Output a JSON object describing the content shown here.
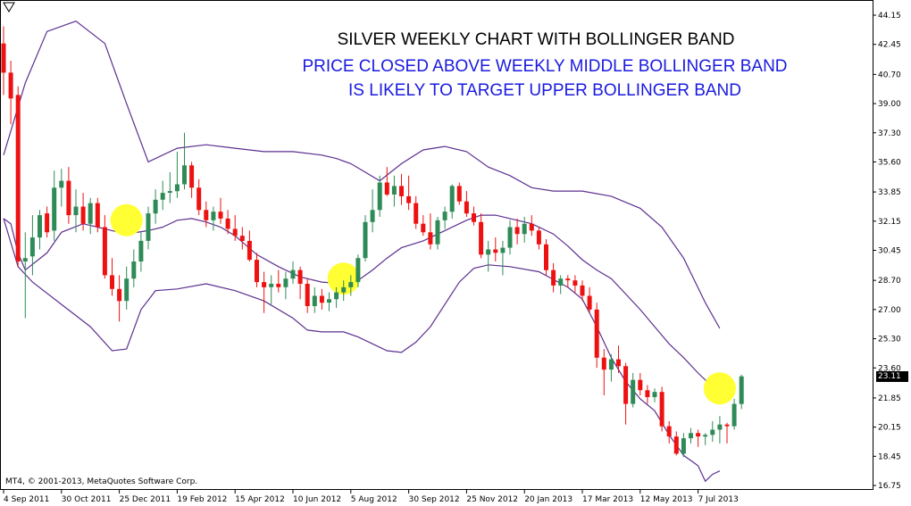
{
  "chart_data": {
    "type": "candlestick",
    "title": "SILVER WEEKLY CHART WITH BOLLINGER BAND",
    "subtitle_lines": [
      "PRICE CLOSED ABOVE WEEKLY MIDDLE BOLLINGER BAND",
      "IS LIKELY TO TARGET UPPER BOLLINGER BAND"
    ],
    "copyright": "MT4, © 2001-2013, MetaQuotes Software Corp.",
    "current_price": "23.11",
    "ylim": [
      16.75,
      44.15
    ],
    "y_ticks": [
      "44.15",
      "42.45",
      "40.70",
      "39.00",
      "37.30",
      "35.60",
      "33.85",
      "32.15",
      "30.45",
      "28.70",
      "27.00",
      "25.30",
      "23.60",
      "21.85",
      "20.15",
      "18.45",
      "16.75"
    ],
    "x_labels": [
      {
        "label": "4 Sep 2011",
        "index": 0
      },
      {
        "label": "30 Oct 2011",
        "index": 8
      },
      {
        "label": "25 Dec 2011",
        "index": 16
      },
      {
        "label": "19 Feb 2012",
        "index": 24
      },
      {
        "label": "15 Apr 2012",
        "index": 32
      },
      {
        "label": "10 Jun 2012",
        "index": 40
      },
      {
        "label": "5 Aug 2012",
        "index": 48
      },
      {
        "label": "30 Sep 2012",
        "index": 56
      },
      {
        "label": "25 Nov 2012",
        "index": 64
      },
      {
        "label": "20 Jan 2013",
        "index": 72
      },
      {
        "label": "17 Mar 2013",
        "index": 80
      },
      {
        "label": "12 May 2013",
        "index": 88
      },
      {
        "label": "7 Jul 2013",
        "index": 96
      }
    ],
    "candles": [
      [
        42.5,
        43.5,
        39.5,
        40.8
      ],
      [
        40.8,
        41.5,
        37.8,
        39.3
      ],
      [
        39.5,
        40.0,
        29.5,
        29.8
      ],
      [
        29.8,
        31.5,
        26.5,
        30.0
      ],
      [
        30.1,
        32.5,
        29.0,
        31.2
      ],
      [
        31.2,
        32.8,
        30.5,
        32.5
      ],
      [
        32.6,
        33.0,
        31.2,
        31.5
      ],
      [
        31.6,
        35.1,
        31.0,
        34.1
      ],
      [
        34.1,
        35.2,
        33.0,
        34.5
      ],
      [
        34.5,
        35.3,
        32.0,
        32.5
      ],
      [
        32.5,
        34.0,
        31.5,
        33.0
      ],
      [
        33.0,
        33.8,
        31.6,
        32.0
      ],
      [
        32.0,
        33.5,
        31.4,
        33.2
      ],
      [
        33.2,
        33.5,
        31.5,
        31.8
      ],
      [
        31.8,
        32.5,
        28.8,
        29.0
      ],
      [
        29.0,
        30.0,
        27.8,
        28.2
      ],
      [
        28.2,
        29.0,
        26.3,
        27.5
      ],
      [
        27.5,
        29.5,
        27.0,
        28.8
      ],
      [
        28.8,
        30.5,
        28.3,
        29.8
      ],
      [
        29.8,
        31.5,
        29.2,
        31.0
      ],
      [
        31.0,
        33.0,
        30.5,
        32.6
      ],
      [
        32.6,
        34.0,
        32.0,
        33.4
      ],
      [
        33.4,
        34.5,
        32.8,
        33.8
      ],
      [
        33.8,
        35.0,
        33.2,
        33.9
      ],
      [
        33.9,
        36.2,
        33.5,
        34.3
      ],
      [
        34.3,
        37.3,
        34.0,
        35.4
      ],
      [
        35.4,
        35.6,
        33.5,
        34.1
      ],
      [
        34.1,
        34.6,
        32.5,
        32.8
      ],
      [
        32.8,
        33.3,
        31.8,
        32.2
      ],
      [
        32.2,
        33.0,
        31.6,
        32.7
      ],
      [
        32.7,
        33.5,
        32.0,
        32.3
      ],
      [
        32.3,
        32.8,
        31.4,
        31.7
      ],
      [
        31.7,
        32.5,
        31.0,
        31.3
      ],
      [
        31.3,
        31.8,
        30.5,
        31.0
      ],
      [
        31.0,
        31.6,
        29.8,
        29.9
      ],
      [
        29.9,
        30.3,
        28.3,
        28.6
      ],
      [
        28.6,
        29.2,
        26.8,
        28.3
      ],
      [
        28.3,
        29.0,
        27.3,
        28.5
      ],
      [
        28.5,
        29.3,
        28.0,
        28.3
      ],
      [
        28.3,
        29.2,
        27.6,
        28.8
      ],
      [
        28.8,
        29.8,
        28.5,
        29.3
      ],
      [
        29.3,
        29.5,
        27.6,
        28.5
      ],
      [
        28.5,
        28.8,
        26.8,
        27.2
      ],
      [
        27.2,
        28.3,
        26.8,
        27.8
      ],
      [
        27.8,
        28.2,
        27.0,
        27.4
      ],
      [
        27.4,
        28.0,
        26.9,
        27.6
      ],
      [
        27.6,
        28.3,
        27.1,
        28.0
      ],
      [
        28.0,
        28.7,
        27.5,
        28.3
      ],
      [
        28.3,
        29.0,
        27.8,
        28.6
      ],
      [
        28.6,
        30.2,
        28.3,
        30.0
      ],
      [
        30.0,
        32.5,
        29.8,
        32.1
      ],
      [
        32.1,
        34.0,
        31.5,
        32.8
      ],
      [
        32.8,
        34.8,
        32.4,
        34.4
      ],
      [
        34.4,
        35.3,
        33.6,
        33.7
      ],
      [
        33.7,
        34.8,
        33.0,
        34.2
      ],
      [
        34.2,
        34.9,
        33.1,
        33.6
      ],
      [
        33.6,
        34.8,
        32.8,
        33.2
      ],
      [
        33.2,
        33.6,
        31.7,
        32.0
      ],
      [
        32.0,
        32.5,
        31.3,
        31.5
      ],
      [
        31.5,
        32.6,
        30.5,
        30.8
      ],
      [
        30.8,
        32.4,
        30.5,
        32.2
      ],
      [
        32.2,
        33.0,
        31.7,
        32.7
      ],
      [
        32.7,
        34.3,
        32.3,
        34.2
      ],
      [
        34.2,
        34.4,
        33.1,
        33.3
      ],
      [
        33.3,
        33.9,
        32.4,
        32.6
      ],
      [
        32.6,
        33.0,
        31.9,
        32.1
      ],
      [
        32.1,
        32.6,
        30.0,
        30.2
      ],
      [
        30.2,
        31.0,
        29.2,
        30.5
      ],
      [
        30.5,
        31.2,
        29.8,
        30.3
      ],
      [
        30.3,
        31.0,
        29.0,
        30.6
      ],
      [
        30.6,
        32.2,
        30.2,
        31.8
      ],
      [
        31.8,
        32.3,
        30.8,
        31.4
      ],
      [
        31.4,
        32.4,
        30.9,
        32.0
      ],
      [
        32.0,
        32.5,
        31.3,
        31.6
      ],
      [
        31.6,
        31.8,
        30.5,
        30.8
      ],
      [
        30.8,
        31.1,
        29.0,
        29.3
      ],
      [
        29.3,
        29.7,
        28.0,
        28.4
      ],
      [
        28.4,
        29.0,
        27.9,
        28.8
      ],
      [
        28.8,
        29.0,
        28.3,
        28.7
      ],
      [
        28.7,
        29.0,
        28.0,
        28.4
      ],
      [
        28.4,
        28.7,
        27.5,
        27.8
      ],
      [
        27.8,
        28.3,
        26.8,
        27.0
      ],
      [
        27.0,
        27.4,
        23.6,
        24.2
      ],
      [
        24.2,
        24.7,
        22.0,
        23.5
      ],
      [
        23.5,
        24.4,
        22.8,
        24.1
      ],
      [
        24.1,
        24.9,
        23.3,
        23.7
      ],
      [
        23.7,
        23.9,
        20.3,
        21.5
      ],
      [
        21.5,
        23.3,
        21.3,
        22.9
      ],
      [
        22.9,
        23.3,
        22.0,
        22.3
      ],
      [
        22.3,
        22.6,
        21.5,
        21.9
      ],
      [
        21.9,
        22.4,
        21.6,
        22.2
      ],
      [
        22.2,
        22.5,
        19.9,
        20.2
      ],
      [
        20.2,
        20.5,
        19.2,
        19.6
      ],
      [
        19.6,
        19.9,
        18.5,
        18.6
      ],
      [
        18.6,
        19.8,
        18.4,
        19.5
      ],
      [
        19.5,
        20.1,
        19.2,
        19.8
      ],
      [
        19.8,
        20.0,
        19.0,
        19.6
      ],
      [
        19.6,
        19.8,
        19.1,
        19.7
      ],
      [
        19.7,
        20.5,
        19.3,
        20.0
      ],
      [
        20.0,
        20.8,
        19.2,
        20.3
      ],
      [
        20.3,
        20.4,
        19.2,
        20.2
      ],
      [
        20.2,
        21.8,
        20.0,
        21.5
      ],
      [
        21.5,
        23.2,
        21.2,
        23.11
      ]
    ],
    "bollinger": {
      "upper": [
        [
          0,
          36.0
        ],
        [
          3,
          40.2
        ],
        [
          6,
          43.2
        ],
        [
          10,
          43.8
        ],
        [
          14,
          42.5
        ],
        [
          17,
          39.0
        ],
        [
          20,
          35.6
        ],
        [
          24,
          36.4
        ],
        [
          28,
          36.6
        ],
        [
          32,
          36.4
        ],
        [
          36,
          36.2
        ],
        [
          40,
          36.2
        ],
        [
          44,
          36.0
        ],
        [
          46,
          35.8
        ],
        [
          48,
          35.5
        ],
        [
          50,
          35.0
        ],
        [
          52,
          34.5
        ],
        [
          55,
          35.5
        ],
        [
          58,
          36.3
        ],
        [
          61,
          36.5
        ],
        [
          64,
          36.2
        ],
        [
          67,
          35.3
        ],
        [
          70,
          34.8
        ],
        [
          73,
          34.1
        ],
        [
          76,
          33.9
        ],
        [
          80,
          33.9
        ],
        [
          84,
          33.6
        ],
        [
          88,
          32.9
        ],
        [
          91,
          31.8
        ],
        [
          94,
          30.0
        ],
        [
          97,
          27.4
        ],
        [
          99,
          25.9
        ]
      ],
      "middle": [
        [
          0,
          32.3
        ],
        [
          1,
          32.0
        ],
        [
          2,
          30.3
        ],
        [
          3,
          29.3
        ],
        [
          6,
          30.3
        ],
        [
          8,
          31.5
        ],
        [
          11,
          32.0
        ],
        [
          13,
          31.8
        ],
        [
          15,
          31.6
        ],
        [
          17,
          31.4
        ],
        [
          20,
          31.6
        ],
        [
          22,
          31.8
        ],
        [
          24,
          32.2
        ],
        [
          26,
          32.3
        ],
        [
          28,
          32.1
        ],
        [
          30,
          31.8
        ],
        [
          32,
          31.3
        ],
        [
          35,
          30.2
        ],
        [
          38,
          29.5
        ],
        [
          41,
          28.9
        ],
        [
          44,
          28.6
        ],
        [
          47,
          28.5
        ],
        [
          49,
          28.7
        ],
        [
          51,
          29.3
        ],
        [
          53,
          30.0
        ],
        [
          55,
          30.6
        ],
        [
          58,
          31.0
        ],
        [
          61,
          31.6
        ],
        [
          64,
          32.2
        ],
        [
          66,
          32.5
        ],
        [
          68,
          32.5
        ],
        [
          70,
          32.3
        ],
        [
          73,
          32.0
        ],
        [
          76,
          31.4
        ],
        [
          78,
          30.7
        ],
        [
          80,
          29.9
        ],
        [
          82,
          29.3
        ],
        [
          84,
          28.8
        ],
        [
          86,
          27.9
        ],
        [
          88,
          27.0
        ],
        [
          90,
          26.0
        ],
        [
          92,
          25.0
        ],
        [
          94,
          24.2
        ],
        [
          96,
          23.3
        ],
        [
          98,
          22.5
        ],
        [
          99,
          22.1
        ]
      ],
      "lower": [
        [
          0,
          32.3
        ],
        [
          2,
          29.5
        ],
        [
          4,
          28.6
        ],
        [
          8,
          27.3
        ],
        [
          12,
          26.0
        ],
        [
          15,
          24.6
        ],
        [
          17,
          24.7
        ],
        [
          19,
          27.0
        ],
        [
          21,
          28.1
        ],
        [
          24,
          28.2
        ],
        [
          28,
          28.5
        ],
        [
          32,
          28.1
        ],
        [
          36,
          27.5
        ],
        [
          40,
          26.5
        ],
        [
          42,
          25.8
        ],
        [
          44,
          25.7
        ],
        [
          47,
          25.7
        ],
        [
          49,
          25.4
        ],
        [
          51,
          25.0
        ],
        [
          53,
          24.6
        ],
        [
          55,
          24.5
        ],
        [
          57,
          25.1
        ],
        [
          59,
          26.0
        ],
        [
          61,
          27.3
        ],
        [
          63,
          28.6
        ],
        [
          65,
          29.4
        ],
        [
          67,
          29.6
        ],
        [
          70,
          29.5
        ],
        [
          74,
          29.2
        ],
        [
          78,
          28.3
        ],
        [
          80,
          27.6
        ],
        [
          82,
          26.0
        ],
        [
          84,
          24.2
        ],
        [
          86,
          22.8
        ],
        [
          88,
          21.8
        ],
        [
          90,
          21.1
        ],
        [
          92,
          19.7
        ],
        [
          94,
          18.5
        ],
        [
          96,
          17.9
        ],
        [
          97,
          17.0
        ],
        [
          98,
          17.4
        ],
        [
          99,
          17.6
        ]
      ]
    },
    "highlight_markers": [
      {
        "index": 17,
        "price": 32.2
      },
      {
        "index": 47,
        "price": 28.8
      },
      {
        "index": 99,
        "price": 22.4
      }
    ],
    "colors": {
      "bull": "#2e8b57",
      "bear": "#ee1111",
      "band": "#5c2f8f",
      "highlight": "#ffff33",
      "text_blue": "#1a1ae0"
    },
    "grid": false,
    "legend": "none"
  }
}
